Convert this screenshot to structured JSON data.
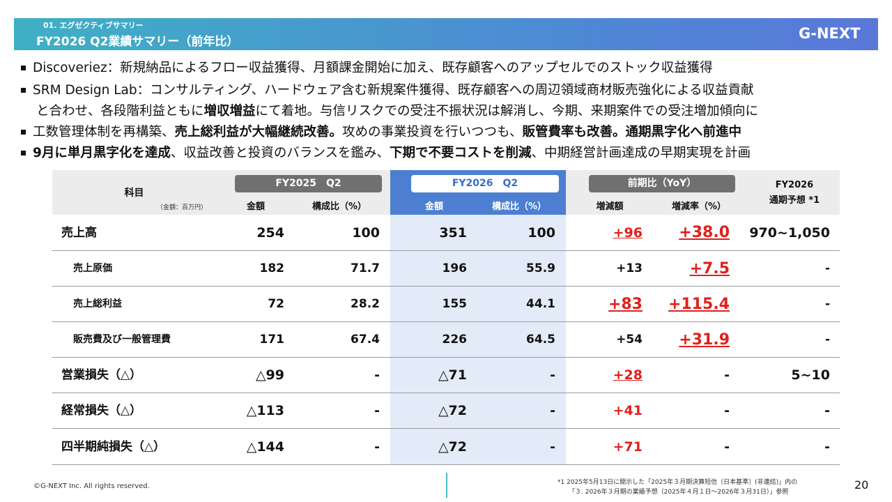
{
  "header": {
    "section": "01. エグゼクティブサマリー",
    "title": "FY2026 Q2業績サマリー（前年比）",
    "logo": "G-NEXT"
  },
  "bullets": [
    [
      [
        {
          "text": "Discoveriez：新規納品によるフロー収益獲得、月額課金開始に加え、既存顧客へのアップセルでのストック収益獲得"
        }
      ]
    ],
    [
      [
        {
          "text": "SRM Design Lab：コンサルティング、ハードウェア含む新規案件獲得、既存顧客への周辺領域商材販売強化による収益貢献"
        }
      ],
      [
        {
          "text": "と合わせ、各段階利益ともに"
        },
        {
          "text": "増収増益",
          "bold": true
        },
        {
          "text": "にて着地。与信リスクでの受注不振状況は解消し、今期、来期案件での受注増加傾向に"
        }
      ]
    ],
    [
      [
        {
          "text": "工数管理体制を再構築、"
        },
        {
          "text": "売上総利益が大幅継続改善。",
          "bold": true
        },
        {
          "text": "攻めの事業投資を行いつつも、"
        },
        {
          "text": "販管費率も改善。通期黒字化へ前進中",
          "bold": true
        }
      ]
    ],
    [
      [
        {
          "text": "9月に単月黒字化を達成",
          "bold": true
        },
        {
          "text": "、収益改善と投資のバランスを鑑み、"
        },
        {
          "text": "下期で不要コストを削減",
          "bold": true
        },
        {
          "text": "、中期経営計画達成の早期実現を計画"
        }
      ]
    ]
  ],
  "table": {
    "subject": "科目",
    "unit": "（金額：百万円）",
    "groups": [
      "FY2025　Q2",
      "FY2026　Q2",
      "前期比（YoY）"
    ],
    "columns": [
      "金額",
      "構成比（%）",
      "金額",
      "構成比（%）",
      "増減額",
      "増減率（%）"
    ],
    "forecast": [
      "FY2026",
      "通期予想 *1"
    ],
    "rows": [
      {
        "label": "売上高",
        "cells": [
          "254",
          "100",
          "351",
          "100",
          "+96",
          "+38.0",
          "970~1,050"
        ]
      },
      {
        "label": "売上原価",
        "cells": [
          "182",
          "71.7",
          "196",
          "55.9",
          "+13",
          "+7.5",
          "-"
        ]
      },
      {
        "label": "売上総利益",
        "cells": [
          "72",
          "28.2",
          "155",
          "44.1",
          "+83",
          "+115.4",
          "-"
        ]
      },
      {
        "label": "販売費及び一般管理費",
        "cells": [
          "171",
          "67.4",
          "226",
          "64.5",
          "+54",
          "+31.9",
          "-"
        ]
      },
      {
        "label": "営業損失（△）",
        "cells": [
          "△99",
          "-",
          "△71",
          "-",
          "+28",
          "-",
          "5~10"
        ]
      },
      {
        "label": "経常損失（△）",
        "cells": [
          "△113",
          "-",
          "△72",
          "-",
          "+41",
          "-",
          "-"
        ]
      },
      {
        "label": "四半期純損失（△）",
        "cells": [
          "△144",
          "-",
          "△72",
          "-",
          "+71",
          "-",
          "-"
        ]
      }
    ]
  },
  "footer": {
    "copyright": "©G-NEXT Inc. All rights reserved.",
    "footnote": [
      "*1  2025年5月13日に開示した「2025年３月期決算短信〔日本基準〕(非連結)」内の",
      "「３. 2026年３月期の業績予想（2025年４月１日～2026年３月31日）」参照"
    ],
    "page": "20"
  }
}
